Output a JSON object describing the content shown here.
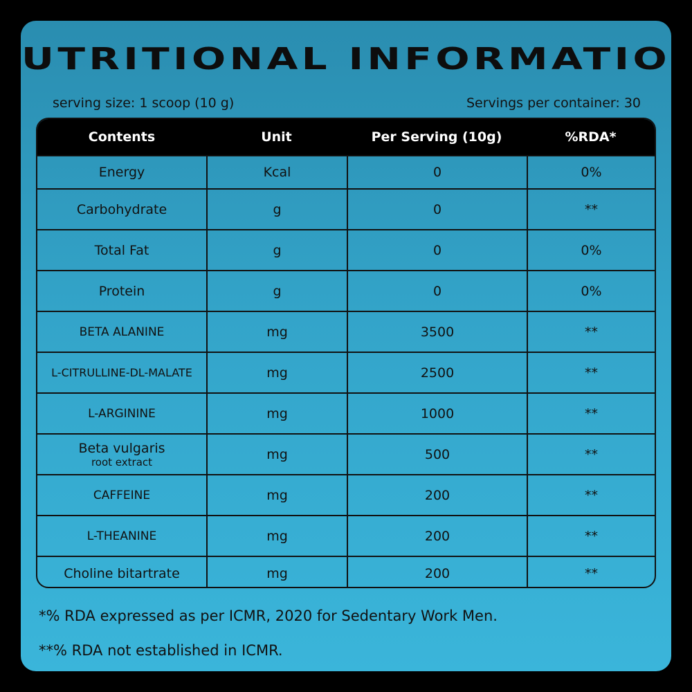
{
  "title": "NUTRITIONAL INFORMATION",
  "serving_size": "serving size: 1 scoop (10 g)",
  "servings_per_container": "Servings per container: 30",
  "table": {
    "headers": [
      "Contents",
      "Unit",
      "Per Serving (10g)",
      "%RDA*"
    ],
    "rows": [
      {
        "content": "Energy",
        "unit": "Kcal",
        "per_serving": "0",
        "rda": "0%"
      },
      {
        "content": "Carbohydrate",
        "unit": "g",
        "per_serving": "0",
        "rda": "**"
      },
      {
        "content": "Total Fat",
        "unit": "g",
        "per_serving": "0",
        "rda": "0%"
      },
      {
        "content": "Protein",
        "unit": "g",
        "per_serving": "0",
        "rda": "0%"
      },
      {
        "content": "BETA ALANINE",
        "unit": "mg",
        "per_serving": "3500",
        "rda": "**"
      },
      {
        "content": "L-CITRULLINE-DL-MALATE",
        "unit": "mg",
        "per_serving": "2500",
        "rda": "**"
      },
      {
        "content": "L-ARGININE",
        "unit": "mg",
        "per_serving": "1000",
        "rda": "**"
      },
      {
        "content": "Beta vulgaris",
        "content_sub": "root extract",
        "unit": "mg",
        "per_serving": "500",
        "rda": "**"
      },
      {
        "content": "CAFFEINE",
        "unit": "mg",
        "per_serving": "200",
        "rda": "**"
      },
      {
        "content": "L-THEANINE",
        "unit": "mg",
        "per_serving": "200",
        "rda": "**"
      },
      {
        "content": "Choline bitartrate",
        "unit": "mg",
        "per_serving": "200",
        "rda": "**"
      }
    ]
  },
  "footnotes": [
    "*% RDA expressed as per ICMR, 2020 for Sedentary Work Men.",
    "**% RDA not established in ICMR."
  ],
  "colors": {
    "background": "#000000",
    "card_top": "#2a8db0",
    "card_bottom": "#3ab5da",
    "header_bg": "#000000",
    "text": "#111111"
  }
}
